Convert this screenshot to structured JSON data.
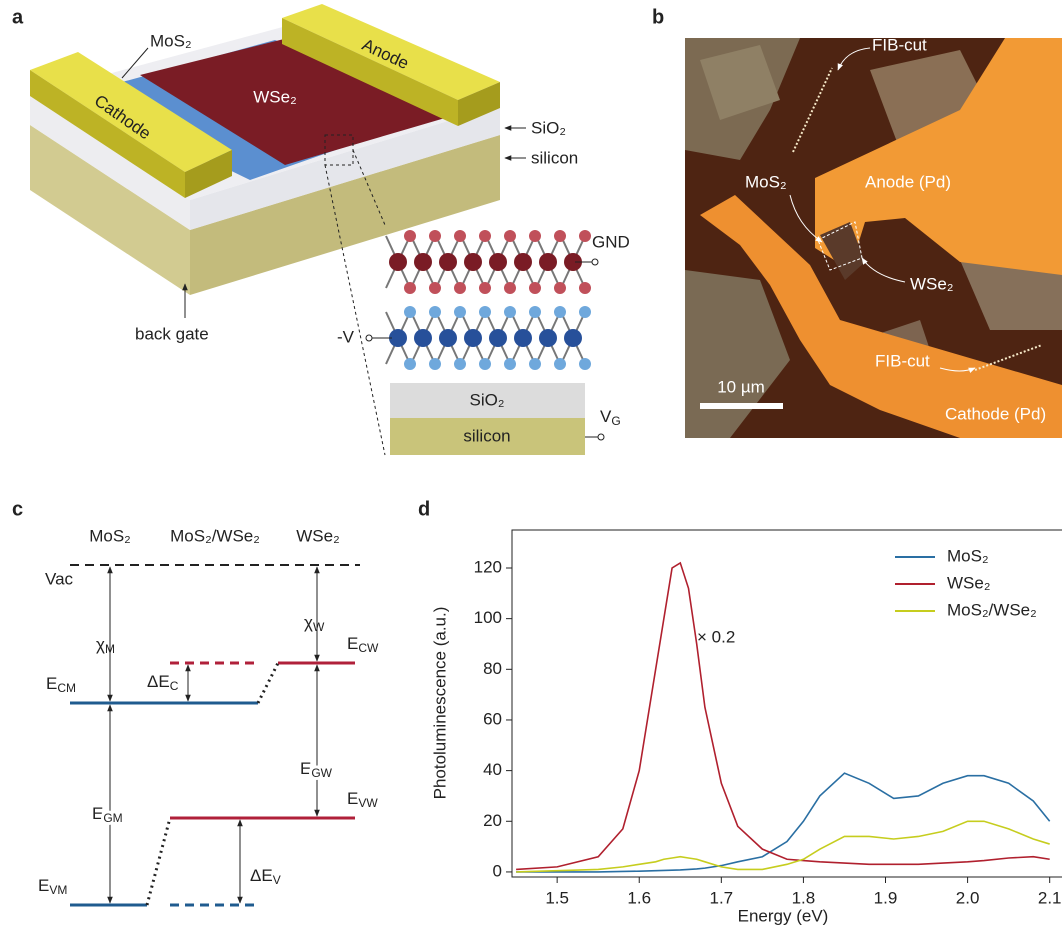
{
  "panel_a": {
    "label": "a",
    "mos2": "MoS₂",
    "anode": "Anode",
    "cathode": "Cathode",
    "wse2": "WSe₂",
    "sio2": "SiO₂",
    "silicon": "silicon",
    "back_gate": "back gate",
    "gnd": "GND",
    "minus_v": "-V",
    "inset_sio2": "SiO₂",
    "inset_silicon": "silicon",
    "vg": {
      "base": "V",
      "sub": "G"
    }
  },
  "panel_b": {
    "label": "b",
    "fib_cut_top": "FIB-cut",
    "mos2": "MoS₂",
    "anode": "Anode (Pd)",
    "wse2": "WSe₂",
    "fib_cut_bottom": "FIB-cut",
    "scale": "10 µm",
    "cathode": "Cathode (Pd)"
  },
  "panel_c": {
    "label": "c",
    "headers": [
      "MoS₂",
      "MoS₂/WSe₂",
      "WSe₂"
    ],
    "vac": "Vac",
    "chi_m": {
      "base": "χ",
      "sub": "M"
    },
    "chi_w": {
      "base": "χ",
      "sub": "W"
    },
    "e_cw": {
      "base": "E",
      "sub": "CW"
    },
    "e_cm": {
      "base": "E",
      "sub": "CM"
    },
    "delta_e_c": {
      "base": "ΔE",
      "sub": "C"
    },
    "e_gw": {
      "base": "E",
      "sub": "GW"
    },
    "e_gm": {
      "base": "E",
      "sub": "GM"
    },
    "e_vw": {
      "base": "E",
      "sub": "VW"
    },
    "e_vm": {
      "base": "E",
      "sub": "VM"
    },
    "delta_e_v": {
      "base": "ΔE",
      "sub": "V"
    }
  },
  "panel_d": {
    "label": "d"
  },
  "chart_data": {
    "type": "line",
    "x_label": "Energy (eV)",
    "y_label": "Photoluminescence (a.u.)",
    "annotation": "× 0.2",
    "x": [
      1.45,
      1.5,
      1.55,
      1.58,
      1.6,
      1.62,
      1.63,
      1.64,
      1.65,
      1.66,
      1.67,
      1.68,
      1.7,
      1.72,
      1.75,
      1.78,
      1.8,
      1.82,
      1.85,
      1.88,
      1.91,
      1.94,
      1.97,
      2.0,
      2.02,
      2.05,
      2.08,
      2.1
    ],
    "series": [
      {
        "name": "MoS₂",
        "color": "#2a6fa3",
        "values": [
          0,
          0,
          0,
          0.2,
          0.3,
          0.5,
          0.6,
          0.7,
          0.8,
          1,
          1.2,
          1.5,
          2.5,
          4,
          6,
          12,
          20,
          30,
          39,
          35,
          29,
          30,
          35,
          38,
          38,
          35,
          28,
          20
        ]
      },
      {
        "name": "WSe₂",
        "color": "#b0202e",
        "values": [
          1,
          2,
          6,
          17,
          40,
          80,
          100,
          120,
          122,
          112,
          90,
          65,
          35,
          18,
          9,
          5,
          4.5,
          4,
          3.5,
          3,
          3,
          3,
          3.5,
          4,
          4.5,
          5.5,
          6,
          5
        ]
      },
      {
        "name": "MoS₂/WSe₂",
        "color": "#c6cd1e",
        "values": [
          0,
          0.5,
          1,
          2,
          3,
          4,
          5,
          5.5,
          6,
          5.5,
          5,
          4,
          2,
          1,
          1,
          3,
          5,
          9,
          14,
          14,
          13,
          14,
          16,
          20,
          20,
          17,
          13,
          11
        ]
      }
    ],
    "xlim": [
      1.445,
      2.115
    ],
    "ylim": [
      -2,
      135
    ],
    "xticks": [
      1.5,
      1.6,
      1.7,
      1.8,
      1.9,
      {
        "value": 2,
        "label": "2.0"
      },
      2.1
    ],
    "yticks": [
      0,
      20,
      40,
      60,
      80,
      100,
      120
    ],
    "legend": "upper right"
  }
}
